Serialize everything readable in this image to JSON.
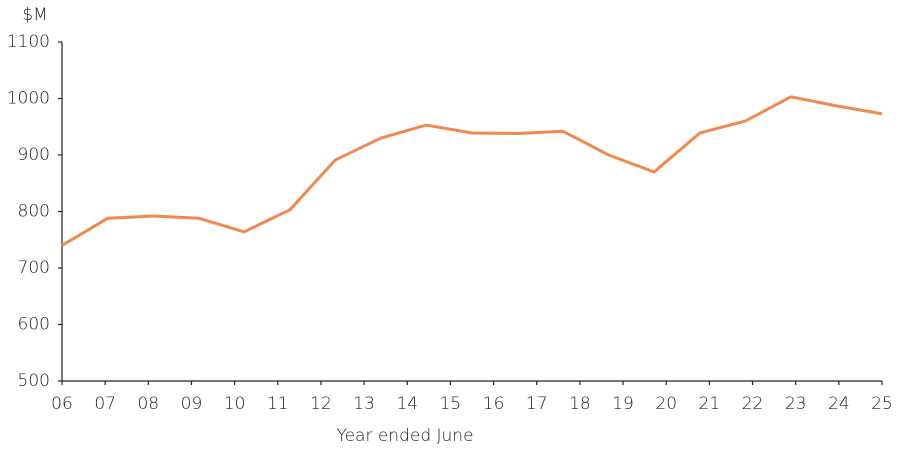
{
  "chart_data": {
    "type": "line",
    "y_unit_label": "$M",
    "x_label": "Year ended June",
    "x": [
      6,
      7.06,
      8.11,
      9.17,
      10.22,
      11.28,
      12.33,
      13.39,
      14.44,
      15.5,
      16.56,
      17.61,
      18.67,
      19.72,
      20.78,
      21.83,
      22.89,
      23.94,
      25
    ],
    "series": [
      {
        "name": "Value",
        "color": "#f0894f",
        "values": [
          740,
          788,
          792,
          788,
          764,
          803,
          891,
          930,
          953,
          939,
          938,
          942,
          900,
          870,
          939,
          960,
          1003,
          987,
          973
        ]
      }
    ],
    "xlim": [
      6,
      25
    ],
    "xticks": [
      {
        "value": 6,
        "label": "06"
      },
      {
        "value": 7,
        "label": "07"
      },
      {
        "value": 8,
        "label": "08"
      },
      {
        "value": 9,
        "label": "09"
      },
      10,
      11,
      12,
      13,
      14,
      15,
      16,
      17,
      18,
      19,
      20,
      21,
      22,
      23,
      24,
      25
    ],
    "ylim": [
      500,
      1100
    ],
    "yticks": [
      500,
      600,
      700,
      800,
      900,
      1000,
      1100
    ],
    "grid": false
  }
}
